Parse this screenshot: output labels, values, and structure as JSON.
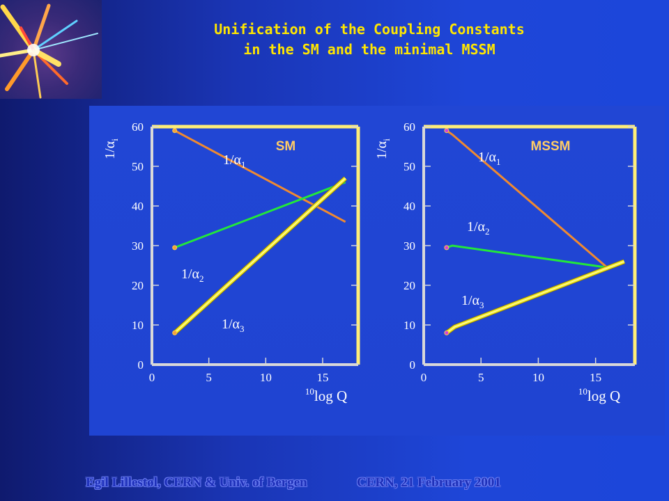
{
  "header": {
    "title_line1": "Unification of the Coupling Constants",
    "title_line2": "in the SM and the minimal MSSM"
  },
  "footer": {
    "author": "Egil Lillestøl, CERN & Univ. of Bergen",
    "event": "CERN, 21 February 2001"
  },
  "colors": {
    "alpha1": "#f08a30",
    "alpha2": "#22e83a",
    "alpha3": "#f6ee2a",
    "frame": "#ffee77",
    "title": "#ffe600"
  },
  "chart_data": [
    {
      "type": "line",
      "panel_label": "SM",
      "ylabel_main": "1/α",
      "ylabel_sub": "i",
      "xlabel_sup": "10",
      "xlabel_main": "log Q",
      "xlim": [
        0,
        18
      ],
      "ylim": [
        0,
        60
      ],
      "xticks": [
        0,
        5,
        10,
        15
      ],
      "yticks": [
        0,
        10,
        20,
        30,
        40,
        50,
        60
      ],
      "series": [
        {
          "key": "alpha1",
          "name_main": "1/α",
          "name_sub": "1",
          "x": [
            2,
            17
          ],
          "y": [
            59,
            36
          ]
        },
        {
          "key": "alpha2",
          "name_main": "1/α",
          "name_sub": "2",
          "x": [
            2,
            17
          ],
          "y": [
            29.5,
            46
          ]
        },
        {
          "key": "alpha3",
          "name_main": "1/α",
          "name_sub": "3",
          "x": [
            2,
            17
          ],
          "y": [
            8,
            47
          ]
        }
      ]
    },
    {
      "type": "line",
      "panel_label": "MSSM",
      "ylabel_main": "1/α",
      "ylabel_sub": "i",
      "xlabel_sup": "10",
      "xlabel_main": "log Q",
      "xlim": [
        0,
        18
      ],
      "ylim": [
        0,
        60
      ],
      "xticks": [
        0,
        5,
        10,
        15
      ],
      "yticks": [
        0,
        10,
        20,
        30,
        40,
        50,
        60
      ],
      "series": [
        {
          "key": "alpha1",
          "name_main": "1/α",
          "name_sub": "1",
          "x": [
            2,
            2.5,
            16
          ],
          "y": [
            59,
            58,
            24.5
          ]
        },
        {
          "key": "alpha2",
          "name_main": "1/α",
          "name_sub": "2",
          "x": [
            2,
            2.5,
            16
          ],
          "y": [
            29.5,
            30,
            24.5
          ]
        },
        {
          "key": "alpha3",
          "name_main": "1/α",
          "name_sub": "3",
          "x": [
            2,
            2.7,
            17.5
          ],
          "y": [
            8,
            9.5,
            26
          ]
        }
      ]
    }
  ]
}
